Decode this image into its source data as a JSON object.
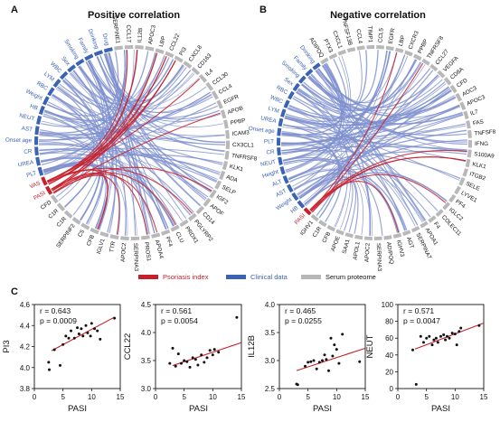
{
  "colors": {
    "blue": "#3a62b5",
    "blue_light": "#7d8fce",
    "red": "#c8202a",
    "gray": "#b8b8b8",
    "black": "#111111"
  },
  "panels": {
    "a_letter": "A",
    "b_letter": "B",
    "c_letter": "C",
    "a_title": "Positive correlation",
    "b_title": "Negative correlation"
  },
  "legend": {
    "psoriasis": "Psoriasis index",
    "clinical": "Clinical data",
    "serum": "Serum proteome"
  },
  "chord_a": {
    "nodes": [
      {
        "label": "Smoking",
        "type": "clinical"
      },
      {
        "label": "Family",
        "type": "clinical"
      },
      {
        "label": "Drinking",
        "type": "clinical"
      },
      {
        "label": "Drug",
        "type": "clinical"
      },
      {
        "label": "SERPINE1",
        "type": "serum"
      },
      {
        "label": "CCL17",
        "type": "serum"
      },
      {
        "label": "IL12B",
        "type": "serum"
      },
      {
        "label": "APOC3",
        "type": "serum"
      },
      {
        "label": "LBP",
        "type": "serum"
      },
      {
        "label": "CCL22",
        "type": "serum"
      },
      {
        "label": "PI3",
        "type": "serum"
      },
      {
        "label": "CXCL8",
        "type": "serum"
      },
      {
        "label": "CD163",
        "type": "serum"
      },
      {
        "label": "IL4",
        "type": "serum"
      },
      {
        "label": "CCL30",
        "type": "serum"
      },
      {
        "label": "CCL4",
        "type": "serum"
      },
      {
        "label": "EGFR",
        "type": "serum"
      },
      {
        "label": "APOB",
        "type": "serum"
      },
      {
        "label": "PPBP",
        "type": "serum"
      },
      {
        "label": "ICAM3",
        "type": "serum"
      },
      {
        "label": "CX3CL1",
        "type": "serum"
      },
      {
        "label": "TNFRSF8",
        "type": "serum"
      },
      {
        "label": "KLK1",
        "type": "serum"
      },
      {
        "label": "ADA",
        "type": "serum"
      },
      {
        "label": "SELP",
        "type": "serum"
      },
      {
        "label": "IGF2",
        "type": "serum"
      },
      {
        "label": "APOF",
        "type": "serum"
      },
      {
        "label": "CD14",
        "type": "serum"
      },
      {
        "label": "PGLYRP2",
        "type": "serum"
      },
      {
        "label": "PRDX1",
        "type": "serum"
      },
      {
        "label": "CLU",
        "type": "serum"
      },
      {
        "label": "PF4",
        "type": "serum"
      },
      {
        "label": "APOA4",
        "type": "serum"
      },
      {
        "label": "PROS1",
        "type": "serum"
      },
      {
        "label": "SERPINA3",
        "type": "serum"
      },
      {
        "label": "APOC2",
        "type": "serum"
      },
      {
        "label": "TTR",
        "type": "serum"
      },
      {
        "label": "IGLV1",
        "type": "serum"
      },
      {
        "label": "CFB",
        "type": "serum"
      },
      {
        "label": "C5",
        "type": "serum"
      },
      {
        "label": "SERPINF2",
        "type": "serum"
      },
      {
        "label": "C1R",
        "type": "serum"
      },
      {
        "label": "C1R",
        "type": "serum"
      },
      {
        "label": "CFD",
        "type": "serum"
      },
      {
        "label": "PASI",
        "type": "psoriasis"
      },
      {
        "label": "VAS",
        "type": "psoriasis"
      },
      {
        "label": "PLT",
        "type": "clinical"
      },
      {
        "label": "UREA",
        "type": "clinical"
      },
      {
        "label": "CR",
        "type": "clinical"
      },
      {
        "label": "Onset age",
        "type": "clinical"
      },
      {
        "label": "AST",
        "type": "clinical"
      },
      {
        "label": "NEUT",
        "type": "clinical"
      },
      {
        "label": "HB",
        "type": "clinical"
      },
      {
        "label": "Weight",
        "type": "clinical"
      },
      {
        "label": "RBC",
        "type": "clinical"
      },
      {
        "label": "LYM",
        "type": "clinical"
      },
      {
        "label": "WBC",
        "type": "clinical"
      },
      {
        "label": "Sex",
        "type": "clinical"
      }
    ]
  },
  "chord_b": {
    "nodes": [
      {
        "label": "Drinking",
        "type": "clinical"
      },
      {
        "label": "ADIPOQ",
        "type": "serum"
      },
      {
        "label": "PTX3",
        "type": "serum"
      },
      {
        "label": "CXCL1",
        "type": "serum"
      },
      {
        "label": "TNFSF13B",
        "type": "serum"
      },
      {
        "label": "CCL4",
        "type": "serum"
      },
      {
        "label": "TIMP1",
        "type": "serum"
      },
      {
        "label": "CCL5",
        "type": "serum"
      },
      {
        "label": "EGFR",
        "type": "serum"
      },
      {
        "label": "LBP",
        "type": "serum"
      },
      {
        "label": "CXCR3",
        "type": "serum"
      },
      {
        "label": "PPBP",
        "type": "serum"
      },
      {
        "label": "TNFRSF8",
        "type": "serum"
      },
      {
        "label": "CCL27",
        "type": "serum"
      },
      {
        "label": "VEGFA",
        "type": "serum"
      },
      {
        "label": "CD8A",
        "type": "serum"
      },
      {
        "label": "CFD",
        "type": "serum"
      },
      {
        "label": "AOC3",
        "type": "serum"
      },
      {
        "label": "APOC3",
        "type": "serum"
      },
      {
        "label": "IL7",
        "type": "serum"
      },
      {
        "label": "FAS",
        "type": "serum"
      },
      {
        "label": "TNFSF8",
        "type": "serum"
      },
      {
        "label": "IFNG",
        "type": "serum"
      },
      {
        "label": "S100A9",
        "type": "serum"
      },
      {
        "label": "KLK1",
        "type": "serum"
      },
      {
        "label": "ITGB2",
        "type": "serum"
      },
      {
        "label": "SELE",
        "type": "serum"
      },
      {
        "label": "LYVE1",
        "type": "serum"
      },
      {
        "label": "PF4",
        "type": "serum"
      },
      {
        "label": "IGLC2",
        "type": "serum"
      },
      {
        "label": "COLEC11",
        "type": "serum"
      },
      {
        "label": "F4",
        "type": "serum"
      },
      {
        "label": "APOA1",
        "type": "serum"
      },
      {
        "label": "SERPINA7",
        "type": "serum"
      },
      {
        "label": "AGT",
        "type": "serum"
      },
      {
        "label": "IGHV3",
        "type": "serum"
      },
      {
        "label": "ADIPOQ",
        "type": "serum"
      },
      {
        "label": "SERPINA3",
        "type": "serum"
      },
      {
        "label": "APOC2",
        "type": "serum"
      },
      {
        "label": "APOL1",
        "type": "serum"
      },
      {
        "label": "SAA1",
        "type": "serum"
      },
      {
        "label": "APOE",
        "type": "serum"
      },
      {
        "label": "CFB",
        "type": "serum"
      },
      {
        "label": "C1R",
        "type": "serum"
      },
      {
        "label": "IGHV1",
        "type": "serum"
      },
      {
        "label": "PASI",
        "type": "psoriasis"
      },
      {
        "label": "HB",
        "type": "clinical"
      },
      {
        "label": "Weight",
        "type": "clinical"
      },
      {
        "label": "AST",
        "type": "clinical"
      },
      {
        "label": "ALT",
        "type": "clinical"
      },
      {
        "label": "Height",
        "type": "clinical"
      },
      {
        "label": "NEUT",
        "type": "clinical"
      },
      {
        "label": "CR",
        "type": "clinical"
      },
      {
        "label": "PLT",
        "type": "clinical"
      },
      {
        "label": "Onset age",
        "type": "clinical"
      },
      {
        "label": "UREA",
        "type": "clinical"
      },
      {
        "label": "LYM",
        "type": "clinical"
      },
      {
        "label": "WBC",
        "type": "clinical"
      },
      {
        "label": "RBC",
        "type": "clinical"
      },
      {
        "label": "Sex",
        "type": "clinical"
      },
      {
        "label": "Smoking",
        "type": "clinical"
      },
      {
        "label": "Family",
        "type": "clinical"
      }
    ]
  },
  "chart_data": [
    {
      "type": "scatter",
      "xlabel": "PASI",
      "ylabel": "PI3",
      "xlim": [
        0,
        15
      ],
      "ylim": [
        3.8,
        4.6
      ],
      "xticks": [
        "0",
        "5",
        "10",
        "15"
      ],
      "yticks": [
        "3.8",
        "4.0",
        "4.2",
        "4.4",
        "4.6"
      ],
      "stats": [
        "r = 0.643",
        "p = 0.0009"
      ],
      "fit": [
        [
          3,
          4.16
        ],
        [
          14,
          4.48
        ]
      ],
      "points": [
        [
          2.5,
          4.05
        ],
        [
          2.6,
          3.98
        ],
        [
          3.5,
          4.17
        ],
        [
          4.5,
          4.02
        ],
        [
          5.0,
          4.22
        ],
        [
          5.5,
          4.3
        ],
        [
          6.0,
          4.28
        ],
        [
          6.4,
          4.35
        ],
        [
          7.0,
          4.28
        ],
        [
          7.5,
          4.38
        ],
        [
          7.8,
          4.32
        ],
        [
          8.2,
          4.37
        ],
        [
          8.5,
          4.3
        ],
        [
          9.0,
          4.4
        ],
        [
          9.3,
          4.33
        ],
        [
          9.8,
          4.3
        ],
        [
          10.0,
          4.42
        ],
        [
          10.5,
          4.37
        ],
        [
          11.0,
          4.35
        ],
        [
          11.5,
          4.27
        ],
        [
          14.0,
          4.47
        ]
      ]
    },
    {
      "type": "scatter",
      "xlabel": "PASI",
      "ylabel": "CCL22",
      "xlim": [
        0,
        15
      ],
      "ylim": [
        3.0,
        4.5
      ],
      "xticks": [
        "0",
        "5",
        "10",
        "15"
      ],
      "yticks": [
        "3.0",
        "3.5",
        "4.0",
        "4.5"
      ],
      "stats": [
        "r = 0.561",
        "p = 0.0054"
      ],
      "fit": [
        [
          3,
          3.41
        ],
        [
          15,
          3.82
        ]
      ],
      "points": [
        [
          2.5,
          3.45
        ],
        [
          3.0,
          3.72
        ],
        [
          3.5,
          3.4
        ],
        [
          4.0,
          3.62
        ],
        [
          4.5,
          3.45
        ],
        [
          5.0,
          3.5
        ],
        [
          5.5,
          3.48
        ],
        [
          6.0,
          3.38
        ],
        [
          6.5,
          3.55
        ],
        [
          7.0,
          3.52
        ],
        [
          7.4,
          3.42
        ],
        [
          8.0,
          3.6
        ],
        [
          8.5,
          3.47
        ],
        [
          9.0,
          3.55
        ],
        [
          9.5,
          3.68
        ],
        [
          10.0,
          3.6
        ],
        [
          10.3,
          3.7
        ],
        [
          11.0,
          3.65
        ],
        [
          14.2,
          4.27
        ]
      ]
    },
    {
      "type": "scatter",
      "xlabel": "PASI",
      "ylabel": "IL12B",
      "xlim": [
        0,
        15
      ],
      "ylim": [
        2.5,
        4.0
      ],
      "xticks": [
        "0",
        "5",
        "10",
        "15"
      ],
      "yticks": [
        "2.5",
        "3.0",
        "3.5",
        "4.0"
      ],
      "stats": [
        "r = 0.465",
        "p = 0.0255"
      ],
      "fit": [
        [
          3,
          2.82
        ],
        [
          15,
          3.22
        ]
      ],
      "points": [
        [
          3.0,
          2.58
        ],
        [
          3.2,
          2.57
        ],
        [
          4.5,
          2.9
        ],
        [
          5.0,
          2.97
        ],
        [
          5.5,
          2.98
        ],
        [
          6.0,
          3.0
        ],
        [
          6.5,
          2.85
        ],
        [
          7.0,
          2.97
        ],
        [
          7.5,
          3.0
        ],
        [
          7.9,
          3.1
        ],
        [
          8.2,
          3.02
        ],
        [
          8.6,
          2.82
        ],
        [
          9.0,
          3.4
        ],
        [
          9.3,
          3.08
        ],
        [
          9.6,
          3.28
        ],
        [
          10.0,
          3.2
        ],
        [
          10.4,
          2.95
        ],
        [
          11.0,
          3.47
        ],
        [
          14.0,
          2.98
        ]
      ]
    },
    {
      "type": "scatter",
      "xlabel": "PASI",
      "ylabel": "NEUT",
      "xlim": [
        0,
        15
      ],
      "ylim": [
        0,
        100
      ],
      "xticks": [
        "0",
        "5",
        "10",
        "15"
      ],
      "yticks": [
        "0",
        "20",
        "40",
        "60",
        "80",
        "100"
      ],
      "stats": [
        "r = 0.571",
        "p = 0.0047"
      ],
      "fit": [
        [
          3,
          47
        ],
        [
          15,
          78
        ]
      ],
      "points": [
        [
          2.6,
          46
        ],
        [
          3.2,
          5
        ],
        [
          4.0,
          62
        ],
        [
          4.5,
          55
        ],
        [
          5.0,
          60
        ],
        [
          5.5,
          62
        ],
        [
          6.0,
          52
        ],
        [
          6.3,
          58
        ],
        [
          6.7,
          60
        ],
        [
          7.0,
          55
        ],
        [
          7.5,
          62
        ],
        [
          8.0,
          64
        ],
        [
          8.3,
          58
        ],
        [
          8.6,
          62
        ],
        [
          9.0,
          60
        ],
        [
          9.5,
          66
        ],
        [
          10.0,
          65
        ],
        [
          10.3,
          52
        ],
        [
          10.7,
          68
        ],
        [
          11.0,
          72
        ],
        [
          14.2,
          75
        ]
      ]
    }
  ]
}
